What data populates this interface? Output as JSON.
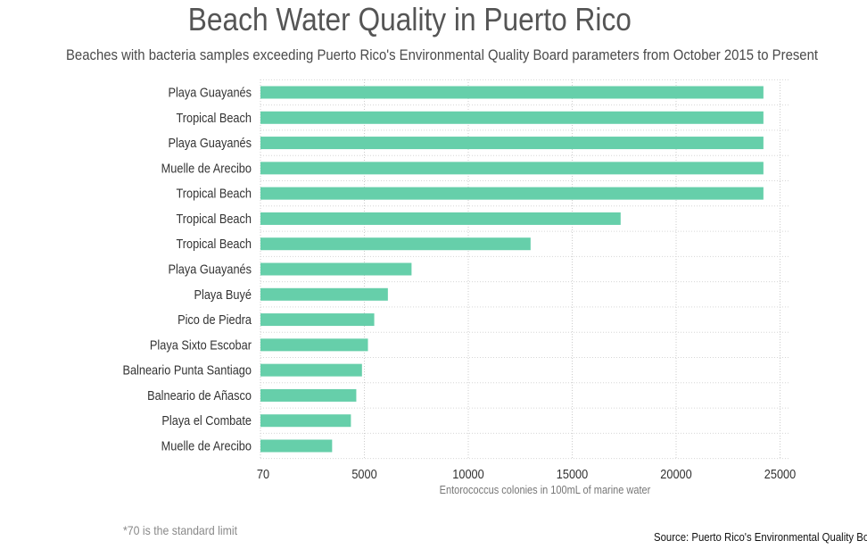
{
  "chart_data": {
    "type": "bar",
    "orientation": "horizontal",
    "title": "Beach Water Quality in Puerto Rico",
    "subtitle": "Beaches with bacteria samples exceeding Puerto Rico's Environmental Quality Board parameters from October 2015 to Present",
    "xlabel": "Entorococcus colonies in 100mL of marine water",
    "ylabel": "",
    "xlim": [
      70,
      25500
    ],
    "x_ticks": [
      70,
      5000,
      10000,
      15000,
      20000,
      25000
    ],
    "x_tick_labels": [
      "70",
      "5000",
      "10000",
      "15000",
      "20000",
      "25000"
    ],
    "grid": true,
    "legend": "none",
    "bar_color": "#66cfaa",
    "categories": [
      "Playa Guayanés",
      "Tropical Beach",
      "Playa Guayanés",
      "Muelle de Arecibo",
      "Tropical Beach",
      "Tropical Beach",
      "Tropical Beach",
      "Playa Guayanés",
      "Playa Buyé",
      "Pico de Piedra",
      "Playa Sixto Escobar",
      "Balneario Punta Santiago",
      "Balneario de Añasco",
      "Playa el Combate",
      "Muelle de Arecibo"
    ],
    "values": [
      24200,
      24200,
      24200,
      24200,
      24200,
      17330,
      12997,
      7270,
      6131,
      5475,
      5172,
      4884,
      4611,
      4352,
      3448
    ]
  },
  "footnote": "*70 is the standard limit",
  "source": "Source: Puerto Rico's Environmental Quality Board"
}
